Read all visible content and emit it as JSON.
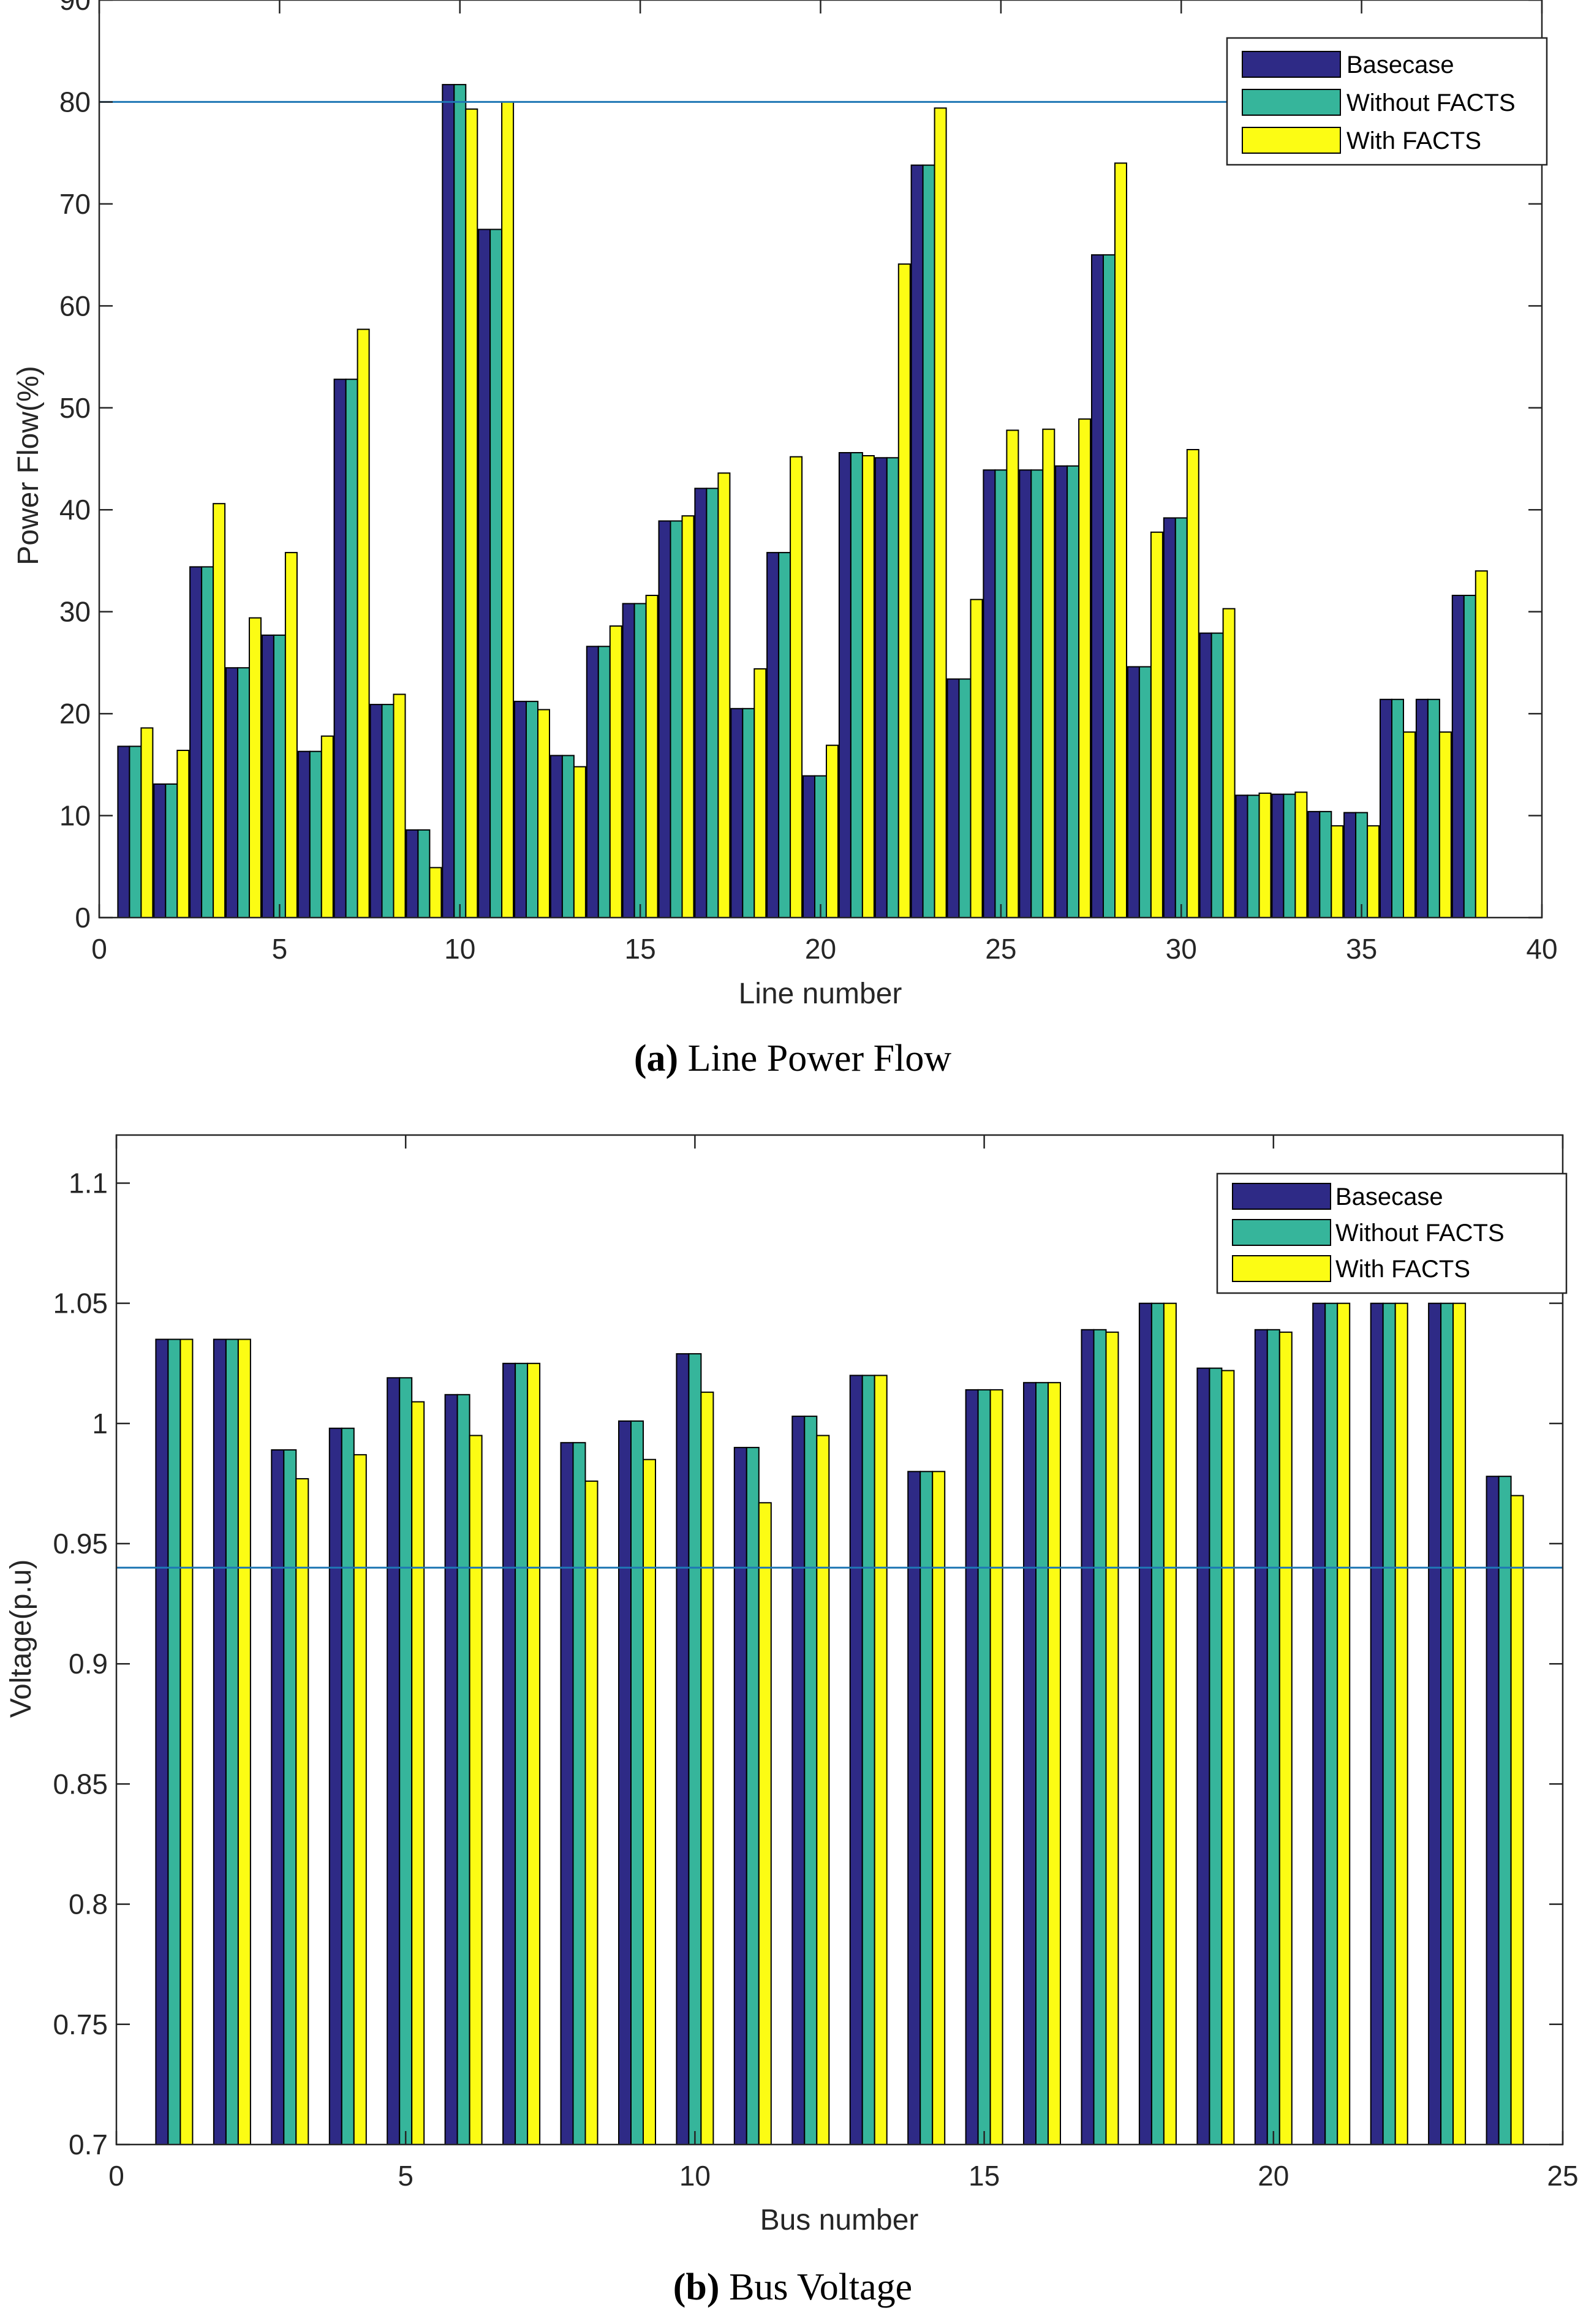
{
  "chart_data": [
    {
      "type": "bar",
      "title": "",
      "xlabel": "Line number",
      "ylabel": "Power Flow(%)",
      "xlim": [
        0,
        40
      ],
      "ylim": [
        0,
        90
      ],
      "xticks": [
        0,
        5,
        10,
        15,
        20,
        25,
        30,
        35,
        40
      ],
      "yticks": [
        0,
        10,
        20,
        30,
        40,
        50,
        60,
        70,
        80,
        90
      ],
      "reference_line": 80,
      "legend_position": "top-right",
      "categories": [
        1,
        2,
        3,
        4,
        5,
        6,
        7,
        8,
        9,
        10,
        11,
        12,
        13,
        14,
        15,
        16,
        17,
        18,
        19,
        20,
        21,
        22,
        23,
        24,
        25,
        26,
        27,
        28,
        29,
        30,
        31,
        32,
        33,
        34,
        35,
        36,
        37,
        38
      ],
      "series": [
        {
          "name": "Basecase",
          "color": "#2e2a86",
          "values": [
            16.8,
            13.1,
            34.4,
            24.5,
            27.7,
            16.3,
            52.8,
            20.9,
            8.6,
            81.7,
            67.5,
            21.2,
            15.9,
            26.6,
            30.8,
            38.9,
            42.1,
            20.5,
            35.8,
            13.9,
            45.6,
            45.1,
            73.8,
            23.4,
            43.9,
            43.9,
            44.3,
            65.0,
            24.6,
            39.2,
            27.9,
            12.0,
            12.1,
            10.4,
            10.3,
            21.4,
            21.4,
            31.6
          ]
        },
        {
          "name": "Without FACTS",
          "color": "#36b59b",
          "values": [
            16.8,
            13.1,
            34.4,
            24.5,
            27.7,
            16.3,
            52.8,
            20.9,
            8.6,
            81.7,
            67.5,
            21.2,
            15.9,
            26.6,
            30.8,
            38.9,
            42.1,
            20.5,
            35.8,
            13.9,
            45.6,
            45.1,
            73.8,
            23.4,
            43.9,
            43.9,
            44.3,
            65.0,
            24.6,
            39.2,
            27.9,
            12.0,
            12.1,
            10.4,
            10.3,
            21.4,
            21.4,
            31.6
          ]
        },
        {
          "name": "With FACTS",
          "color": "#fcfc14",
          "values": [
            18.6,
            16.4,
            40.6,
            29.4,
            35.8,
            17.8,
            57.7,
            21.9,
            4.9,
            79.3,
            80.0,
            20.4,
            14.8,
            28.6,
            31.6,
            39.4,
            43.6,
            24.4,
            45.2,
            16.9,
            45.3,
            64.1,
            79.4,
            31.2,
            47.8,
            47.9,
            48.9,
            74.0,
            37.8,
            45.9,
            30.3,
            12.2,
            12.3,
            9.0,
            9.0,
            18.2,
            18.2,
            34.0
          ]
        }
      ],
      "caption_label": "(a)",
      "caption_text": "Line Power Flow"
    },
    {
      "type": "bar",
      "title": "",
      "xlabel": "Bus number",
      "ylabel": "Voltage(p.u)",
      "xlim": [
        0,
        25
      ],
      "ylim": [
        0.7,
        1.12
      ],
      "xticks": [
        0,
        5,
        10,
        15,
        20,
        25
      ],
      "yticks": [
        0.7,
        0.75,
        0.8,
        0.85,
        0.9,
        0.95,
        1,
        1.05,
        1.1
      ],
      "reference_line": 0.94,
      "legend_position": "top-right",
      "categories": [
        1,
        2,
        3,
        4,
        5,
        6,
        7,
        8,
        9,
        10,
        11,
        12,
        13,
        14,
        15,
        16,
        17,
        18,
        19,
        20,
        21,
        22,
        23,
        24
      ],
      "series": [
        {
          "name": "Basecase",
          "color": "#2e2a86",
          "values": [
            1.035,
            1.035,
            0.989,
            0.998,
            1.019,
            1.012,
            1.025,
            0.992,
            1.001,
            1.029,
            0.99,
            1.003,
            1.02,
            0.98,
            1.014,
            1.017,
            1.039,
            1.05,
            1.023,
            1.039,
            1.05,
            1.05,
            1.05,
            0.978
          ]
        },
        {
          "name": "Without FACTS",
          "color": "#36b59b",
          "values": [
            1.035,
            1.035,
            0.989,
            0.998,
            1.019,
            1.012,
            1.025,
            0.992,
            1.001,
            1.029,
            0.99,
            1.003,
            1.02,
            0.98,
            1.014,
            1.017,
            1.039,
            1.05,
            1.023,
            1.039,
            1.05,
            1.05,
            1.05,
            0.978
          ]
        },
        {
          "name": "With FACTS",
          "color": "#fcfc14",
          "values": [
            1.035,
            1.035,
            0.977,
            0.987,
            1.009,
            0.995,
            1.025,
            0.976,
            0.985,
            1.013,
            0.967,
            0.995,
            1.02,
            0.98,
            1.014,
            1.017,
            1.038,
            1.05,
            1.022,
            1.038,
            1.05,
            1.05,
            1.05,
            0.97
          ]
        }
      ],
      "caption_label": "(b)",
      "caption_text": "Bus Voltage"
    }
  ]
}
